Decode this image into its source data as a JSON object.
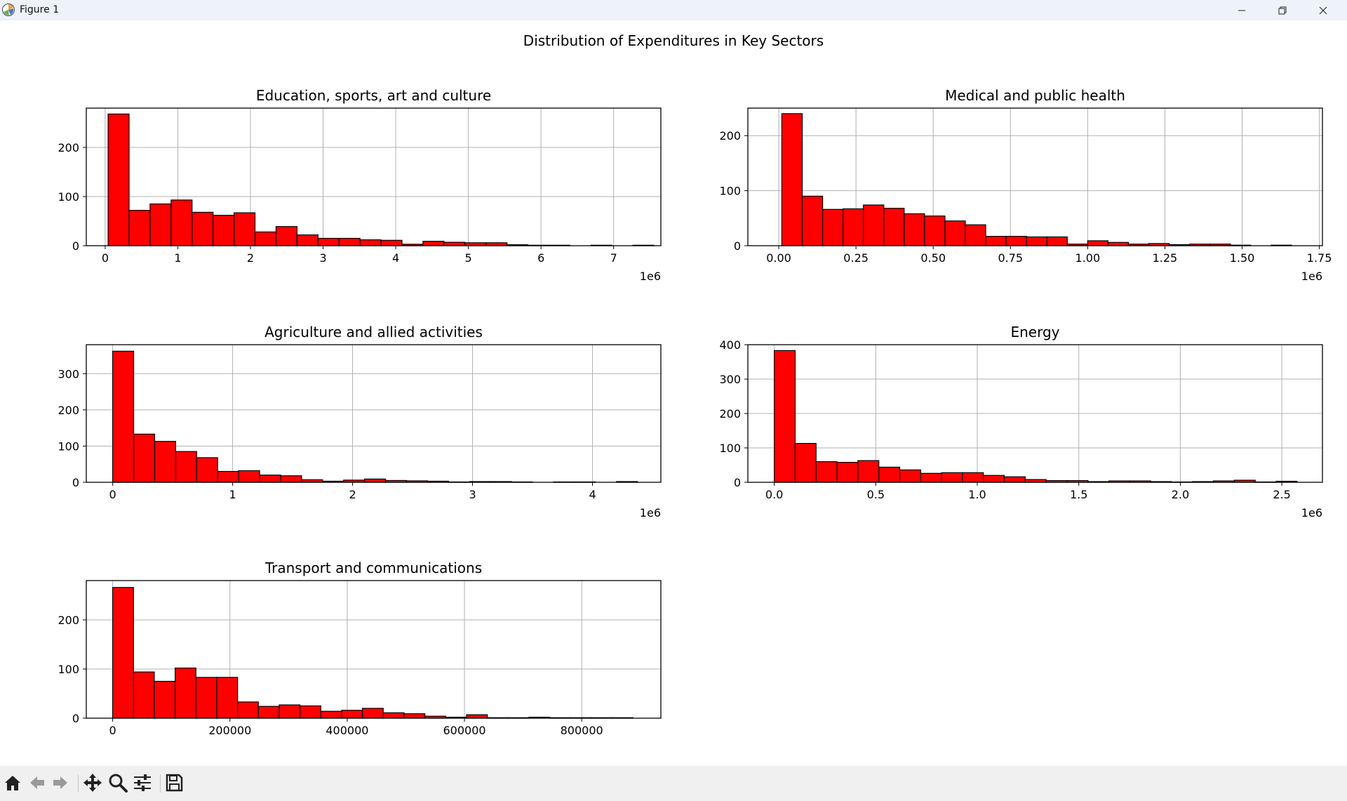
{
  "window": {
    "title": "Figure 1",
    "icons": {
      "app": "matplotlib-logo-icon",
      "minimize": "minimize-icon",
      "maximize": "restore-icon",
      "close": "close-icon"
    }
  },
  "figure": {
    "suptitle": "Distribution of Expenditures in Key Sectors"
  },
  "toolbar": {
    "buttons": [
      {
        "name": "home-icon"
      },
      {
        "name": "back-arrow-icon"
      },
      {
        "name": "forward-arrow-icon"
      },
      {
        "name": "pan-move-icon"
      },
      {
        "name": "zoom-magnifier-icon"
      },
      {
        "name": "configure-subplots-icon"
      },
      {
        "name": "save-floppy-icon"
      }
    ]
  },
  "style": {
    "bar_color": "#ff0000",
    "edge_color": "#000000",
    "grid_color": "#b0b0b0"
  },
  "chart_data": [
    {
      "type": "bar",
      "title": "Education, sports, art and culture",
      "offset_label": "1e6",
      "xlim": [
        -0.26,
        7.65
      ],
      "ylim": [
        0,
        280
      ],
      "xticks": [
        0,
        1,
        2,
        3,
        4,
        5,
        6,
        7
      ],
      "xtick_labels": [
        "0",
        "1",
        "2",
        "3",
        "4",
        "5",
        "6",
        "7"
      ],
      "yticks": [
        0,
        100,
        200
      ],
      "ytick_labels": [
        "0",
        "100",
        "200"
      ],
      "grid": true,
      "bins_start": 0.04,
      "bin_width": 0.289,
      "values": [
        268,
        72,
        85,
        93,
        68,
        62,
        67,
        28,
        39,
        22,
        15,
        15,
        12,
        11,
        3,
        9,
        7,
        6,
        6,
        2,
        1,
        1,
        0,
        1,
        0,
        1
      ]
    },
    {
      "type": "bar",
      "title": "Medical and public health",
      "offset_label": "1e6",
      "xlim": [
        -0.1,
        1.76
      ],
      "ylim": [
        0,
        250
      ],
      "xticks": [
        0,
        0.25,
        0.5,
        0.75,
        1.0,
        1.25,
        1.5,
        1.75
      ],
      "xtick_labels": [
        "0.00",
        "0.25",
        "0.50",
        "0.75",
        "1.00",
        "1.25",
        "1.50",
        "1.75"
      ],
      "yticks": [
        0,
        100,
        200
      ],
      "ytick_labels": [
        "0",
        "100",
        "200"
      ],
      "grid": true,
      "bins_start": 0.01,
      "bin_width": 0.066,
      "values": [
        240,
        90,
        66,
        67,
        74,
        68,
        58,
        54,
        45,
        38,
        17,
        17,
        16,
        16,
        3,
        9,
        6,
        3,
        4,
        2,
        3,
        3,
        1,
        0,
        1
      ]
    },
    {
      "type": "bar",
      "title": "Agriculture and allied activities",
      "offset_label": "1e6",
      "xlim": [
        -0.22,
        4.57
      ],
      "ylim": [
        0,
        380
      ],
      "xticks": [
        0,
        1,
        2,
        3,
        4
      ],
      "xtick_labels": [
        "0",
        "1",
        "2",
        "3",
        "4"
      ],
      "yticks": [
        0,
        100,
        200,
        300
      ],
      "ytick_labels": [
        "0",
        "100",
        "200",
        "300"
      ],
      "grid": true,
      "bins_start": 0.0,
      "bin_width": 0.175,
      "values": [
        362,
        133,
        113,
        85,
        68,
        30,
        32,
        20,
        18,
        7,
        3,
        6,
        9,
        5,
        4,
        3,
        1,
        2,
        2,
        1,
        0,
        1,
        1,
        0,
        2
      ]
    },
    {
      "type": "bar",
      "title": "Energy",
      "offset_label": "1e6",
      "xlim": [
        -0.13,
        2.7
      ],
      "ylim": [
        0,
        400
      ],
      "xticks": [
        0,
        0.5,
        1.0,
        1.5,
        2.0,
        2.5
      ],
      "xtick_labels": [
        "0.0",
        "0.5",
        "1.0",
        "1.5",
        "2.0",
        "2.5"
      ],
      "yticks": [
        0,
        100,
        200,
        300,
        400
      ],
      "ytick_labels": [
        "0",
        "100",
        "200",
        "300",
        "400"
      ],
      "grid": true,
      "bins_start": 0.0,
      "bin_width": 0.103,
      "values": [
        383,
        113,
        60,
        58,
        63,
        44,
        36,
        26,
        28,
        28,
        20,
        16,
        8,
        5,
        5,
        2,
        4,
        4,
        2,
        1,
        2,
        4,
        6,
        1,
        3
      ]
    },
    {
      "type": "bar",
      "title": "Transport and communications",
      "offset_label": "",
      "xlim": [
        -45000,
        935000
      ],
      "ylim": [
        0,
        280
      ],
      "xticks": [
        0,
        200000,
        400000,
        600000,
        800000
      ],
      "xtick_labels": [
        "0",
        "200000",
        "400000",
        "600000",
        "800000"
      ],
      "yticks": [
        0,
        100,
        200
      ],
      "ytick_labels": [
        "0",
        "100",
        "200"
      ],
      "grid": true,
      "bins_start": 0,
      "bin_width": 35500,
      "values": [
        266,
        94,
        75,
        102,
        83,
        83,
        33,
        24,
        27,
        25,
        14,
        16,
        20,
        11,
        9,
        4,
        2,
        7,
        1,
        1,
        2,
        1,
        1,
        1,
        1
      ]
    }
  ]
}
